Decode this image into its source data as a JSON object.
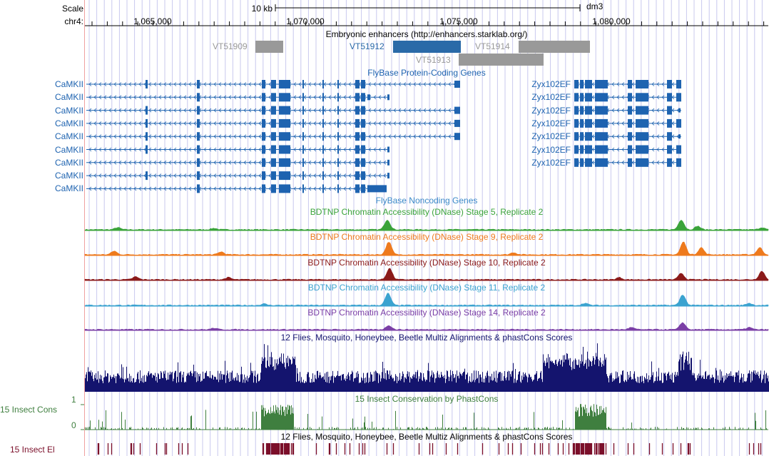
{
  "header": {
    "scale_label": "Scale",
    "chrom_label": "chr4:",
    "scalebar_label": "10 kb",
    "assembly": "dm3",
    "positions": [
      "1,065,000",
      "1,070,000",
      "1,075,000",
      "1,080,000"
    ]
  },
  "tracks": {
    "enhancers": {
      "title": "Embryonic enhancers (http://enhancers.starklab.org/)",
      "items": [
        "VT51909",
        "VT51912",
        "VT51913",
        "VT51914"
      ]
    },
    "genes": {
      "title": "FlyBase Protein-Coding Genes",
      "left_gene": "CaMKII",
      "right_gene": "Zyx102EF",
      "left_count": 9,
      "right_count": 7
    },
    "noncoding": {
      "title": "FlyBase Noncoding Genes"
    },
    "dnase": [
      {
        "title": "BDTNP Chromatin Accessibility (DNase) Stage 5, Replicate 2",
        "color": "#3aa33a"
      },
      {
        "title": "BDTNP Chromatin Accessibility (DNase) Stage 9, Replicate 2",
        "color": "#ee7a1d"
      },
      {
        "title": "BDTNP Chromatin Accessibility (DNase) Stage 10, Replicate 2",
        "color": "#8b1a1a"
      },
      {
        "title": "BDTNP Chromatin Accessibility (DNase) Stage 11, Replicate 2",
        "color": "#3ba3d0"
      },
      {
        "title": "BDTNP Chromatin Accessibility (DNase) Stage 14, Replicate 2",
        "color": "#7b3fa6"
      }
    ],
    "multiz": {
      "title": "12 Flies, Mosquito, Honeybee, Beetle Multiz Alignments & phastCons Scores",
      "color": "#14146e"
    },
    "phastcons": {
      "title": "15 Insect Conservation by PhastCons",
      "side_label": "15 Insect Cons",
      "ymax": "1",
      "ymin": "0",
      "color": "#3f7f3f"
    },
    "elements": {
      "title": "12 Flies, Mosquito, Honeybee, Beetle Multiz Alignments & phastCons Scores",
      "side_label": "15 Insect El",
      "color": "#7b0f2a"
    }
  },
  "colors": {
    "gene_blue": "#1e63b0",
    "enhancer_gray": "#999999",
    "enhancer_selected": "#2a6aa8",
    "grid": "#c8c8ee",
    "left_guide": "#f0a0a0"
  }
}
